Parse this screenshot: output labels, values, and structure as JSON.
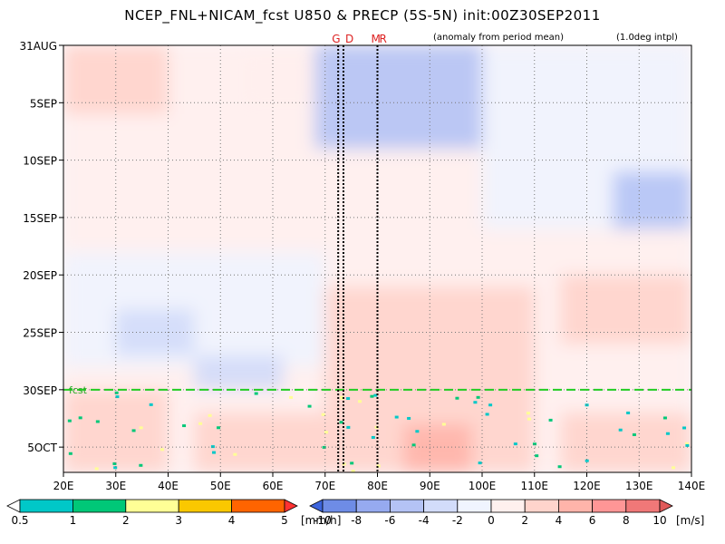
{
  "chart_data": {
    "type": "heatmap",
    "title": "NCEP_FNL+NICAM_fcst U850 & PRECP (5S-5N) init:00Z30SEP2011",
    "subtitle": "(anomaly from period mean)",
    "note": "(1.0deg intpl)",
    "xlabel": "",
    "ylabel": "",
    "x_ticks": [
      "20E",
      "30E",
      "40E",
      "50E",
      "60E",
      "70E",
      "80E",
      "90E",
      "100E",
      "110E",
      "120E",
      "130E",
      "140E"
    ],
    "x_range": [
      20,
      140
    ],
    "y_ticks": [
      "31AUG",
      "5SEP",
      "10SEP",
      "15SEP",
      "20SEP",
      "25SEP",
      "30SEP",
      "5OCT"
    ],
    "y_tick_days": [
      0,
      5,
      10,
      15,
      20,
      25,
      30,
      35
    ],
    "y_range_days": [
      0,
      37.2
    ],
    "forecast_start_label": "fcst",
    "forecast_start_day": 30,
    "marker_lines": [
      {
        "label": "G",
        "lon": 72.5
      },
      {
        "label": "D",
        "lon": 73.5
      },
      {
        "label": "M",
        "lon": 80
      },
      {
        "label": "R",
        "lon": 80
      }
    ],
    "u850_anomaly_regions": [
      {
        "lon0": 20,
        "lon1": 140,
        "day0": 0,
        "day1": 37.2,
        "value": 0.5
      },
      {
        "lon0": 20,
        "lon1": 40,
        "day0": 0,
        "day1": 6,
        "value": 2
      },
      {
        "lon0": 55,
        "lon1": 70,
        "day0": 1,
        "day1": 5,
        "value": 1.5
      },
      {
        "lon0": 68,
        "lon1": 100,
        "day0": 0,
        "day1": 9,
        "value": -6
      },
      {
        "lon0": 100,
        "lon1": 140,
        "day0": 0,
        "day1": 16,
        "value": -2
      },
      {
        "lon0": 125,
        "lon1": 140,
        "day0": 11,
        "day1": 16,
        "value": -6
      },
      {
        "lon0": 20,
        "lon1": 70,
        "day0": 18,
        "day1": 28,
        "value": -2
      },
      {
        "lon0": 30,
        "lon1": 45,
        "day0": 23,
        "day1": 27,
        "value": -3
      },
      {
        "lon0": 45,
        "lon1": 62,
        "day0": 27,
        "day1": 30,
        "value": -3
      },
      {
        "lon0": 70,
        "lon1": 110,
        "day0": 21,
        "day1": 37.2,
        "value": 3
      },
      {
        "lon0": 45,
        "lon1": 70,
        "day0": 32,
        "day1": 37.2,
        "value": 3
      },
      {
        "lon0": 85,
        "lon1": 98,
        "day0": 33,
        "day1": 37.2,
        "value": 5
      },
      {
        "lon0": 115,
        "lon1": 140,
        "day0": 20,
        "day1": 26,
        "value": 2
      },
      {
        "lon0": 115,
        "lon1": 140,
        "day0": 32,
        "day1": 37.2,
        "value": 3
      },
      {
        "lon0": 20,
        "lon1": 40,
        "day0": 30,
        "day1": 37.2,
        "value": 2
      }
    ],
    "precip_legend": {
      "values": [
        "0.5",
        "1",
        "2",
        "3",
        "4",
        "5"
      ],
      "unit": "[mm/h]",
      "colors": [
        "#ffffff",
        "#00c8c8",
        "#00c878",
        "#ffff96",
        "#fac800",
        "#ff6400",
        "#ff3232"
      ]
    },
    "u850_legend": {
      "values": [
        "-10",
        "-8",
        "-6",
        "-4",
        "-2",
        "0",
        "2",
        "4",
        "6",
        "8",
        "10"
      ],
      "unit": "[m/s]",
      "colors": [
        "#3c64dc",
        "#6e8ce6",
        "#96aaf0",
        "#b4c3f5",
        "#d2dcfa",
        "#f0f4ff",
        "#fff0ee",
        "#ffd4cc",
        "#ffb4aa",
        "#ff9696",
        "#f07878",
        "#e05a5a"
      ]
    }
  }
}
